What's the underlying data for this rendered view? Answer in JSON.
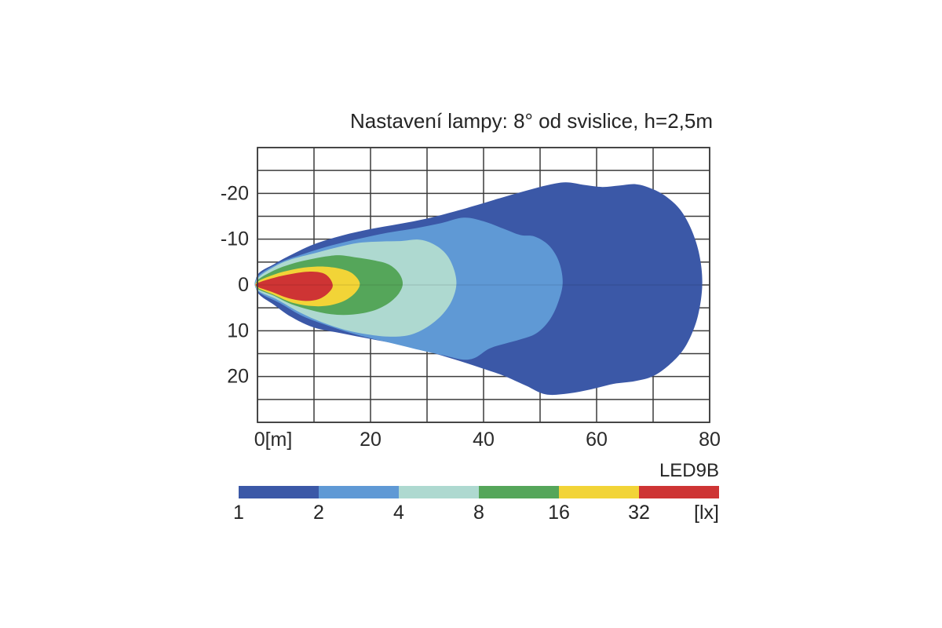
{
  "chart_data": {
    "type": "contour",
    "title": "Nastavení lampy: 8° od svislice, h=2,5m",
    "series": "LED9B",
    "unit": "[lx]",
    "x": {
      "range": [
        0,
        80
      ],
      "grid_step": 10,
      "ticks": [
        {
          "value": 0,
          "label": "0[m]",
          "offset": 20
        },
        {
          "value": 20,
          "label": "20",
          "offset": 0
        },
        {
          "value": 40,
          "label": "40",
          "offset": 0
        },
        {
          "value": 60,
          "label": "60",
          "offset": 0
        },
        {
          "value": 80,
          "label": "80",
          "offset": 0
        }
      ]
    },
    "y": {
      "range": [
        -30,
        30
      ],
      "grid_step": 5,
      "ticks": [
        {
          "value": -20,
          "label": "-20"
        },
        {
          "value": -10,
          "label": "-10"
        },
        {
          "value": 0,
          "label": "0"
        },
        {
          "value": 10,
          "label": "10"
        },
        {
          "value": 20,
          "label": "20"
        }
      ]
    },
    "grid_color": "#3c3c3c",
    "levels": [
      {
        "lux": 1,
        "color": "#3b58a7",
        "points": [
          [
            0,
            -2.2
          ],
          [
            3,
            -4.6
          ],
          [
            6,
            -6.6
          ],
          [
            10,
            -8.9
          ],
          [
            15,
            -10.8
          ],
          [
            20,
            -12.2
          ],
          [
            25,
            -13.3
          ],
          [
            30,
            -14.5
          ],
          [
            35,
            -16.1
          ],
          [
            39,
            -17.5
          ],
          [
            43,
            -19.0
          ],
          [
            47,
            -20.4
          ],
          [
            51,
            -21.7
          ],
          [
            54.5,
            -22.4
          ],
          [
            58,
            -21.8
          ],
          [
            61,
            -21.4
          ],
          [
            64,
            -21.7
          ],
          [
            67,
            -22.0
          ],
          [
            69.8,
            -21.0
          ],
          [
            72.3,
            -19.3
          ],
          [
            74.8,
            -16.4
          ],
          [
            76.8,
            -12.0
          ],
          [
            78.2,
            -6.5
          ],
          [
            78.7,
            -0.3
          ],
          [
            78.1,
            5.8
          ],
          [
            76.9,
            10.5
          ],
          [
            75.2,
            14.4
          ],
          [
            72.8,
            17.5
          ],
          [
            70,
            19.9
          ],
          [
            66.8,
            21.0
          ],
          [
            63,
            21.6
          ],
          [
            59,
            22.8
          ],
          [
            55,
            23.7
          ],
          [
            51,
            23.9
          ],
          [
            47.5,
            22.0
          ],
          [
            43.5,
            19.8
          ],
          [
            39.5,
            18.1
          ],
          [
            35,
            16.3
          ],
          [
            30,
            14.5
          ],
          [
            25,
            13.0
          ],
          [
            20,
            11.8
          ],
          [
            15,
            10.6
          ],
          [
            10,
            9.3
          ],
          [
            6,
            7.0
          ],
          [
            3,
            4.4
          ],
          [
            0,
            1.6
          ]
        ]
      },
      {
        "lux": 2,
        "color": "#5f99d5",
        "points": [
          [
            0,
            -1.8
          ],
          [
            4,
            -4.9
          ],
          [
            8,
            -6.7
          ],
          [
            13,
            -8.6
          ],
          [
            18,
            -10.1
          ],
          [
            23,
            -11.4
          ],
          [
            28,
            -12.4
          ],
          [
            32.5,
            -13.5
          ],
          [
            36.5,
            -14.7
          ],
          [
            40,
            -13.9
          ],
          [
            43.5,
            -12.3
          ],
          [
            46.5,
            -10.9
          ],
          [
            49,
            -10.6
          ],
          [
            51.5,
            -8.7
          ],
          [
            53.3,
            -5.2
          ],
          [
            54,
            -0.6
          ],
          [
            53.2,
            3.8
          ],
          [
            51.6,
            7.8
          ],
          [
            49.3,
            10.6
          ],
          [
            46.5,
            11.9
          ],
          [
            43.8,
            12.8
          ],
          [
            41,
            13.9
          ],
          [
            38.5,
            15.9
          ],
          [
            36.3,
            16.3
          ],
          [
            33,
            15.4
          ],
          [
            28,
            14.0
          ],
          [
            23,
            12.5
          ],
          [
            18,
            11.0
          ],
          [
            13,
            9.1
          ],
          [
            8,
            6.8
          ],
          [
            4,
            4.0
          ],
          [
            0,
            1.3
          ]
        ]
      },
      {
        "lux": 4,
        "color": "#aed9d0",
        "points": [
          [
            0,
            -1.4
          ],
          [
            3,
            -4.0
          ],
          [
            6,
            -5.6
          ],
          [
            10,
            -6.9
          ],
          [
            14,
            -8.2
          ],
          [
            18,
            -9.2
          ],
          [
            22,
            -9.5
          ],
          [
            25.5,
            -9.6
          ],
          [
            28.5,
            -9.9
          ],
          [
            31,
            -9.0
          ],
          [
            33.2,
            -7.0
          ],
          [
            34.6,
            -4.0
          ],
          [
            35.2,
            -0.3
          ],
          [
            34.4,
            3.4
          ],
          [
            32.6,
            6.6
          ],
          [
            30,
            9.2
          ],
          [
            27,
            10.9
          ],
          [
            23.5,
            11.3
          ],
          [
            19.5,
            10.8
          ],
          [
            15.5,
            9.8
          ],
          [
            11.5,
            8.2
          ],
          [
            7.5,
            6.0
          ],
          [
            3.5,
            3.2
          ],
          [
            0,
            1.1
          ]
        ]
      },
      {
        "lux": 8,
        "color": "#55a65a",
        "points": [
          [
            0,
            -1.0
          ],
          [
            3,
            -3.2
          ],
          [
            6,
            -4.6
          ],
          [
            9,
            -5.5
          ],
          [
            12,
            -6.2
          ],
          [
            14.5,
            -6.5
          ],
          [
            17.5,
            -6.0
          ],
          [
            20.5,
            -5.4
          ],
          [
            23.2,
            -4.5
          ],
          [
            25.0,
            -2.6
          ],
          [
            25.7,
            -0.2
          ],
          [
            24.8,
            2.2
          ],
          [
            22.8,
            4.3
          ],
          [
            20,
            5.8
          ],
          [
            16.5,
            6.5
          ],
          [
            13,
            6.4
          ],
          [
            9.5,
            5.5
          ],
          [
            6,
            4.2
          ],
          [
            2.8,
            2.3
          ],
          [
            0,
            0.8
          ]
        ]
      },
      {
        "lux": 16,
        "color": "#f2d437",
        "points": [
          [
            0,
            -0.7
          ],
          [
            3,
            -2.3
          ],
          [
            6,
            -3.3
          ],
          [
            9,
            -3.9
          ],
          [
            12,
            -4.0
          ],
          [
            14.8,
            -3.5
          ],
          [
            16.8,
            -2.5
          ],
          [
            18.1,
            -0.4
          ],
          [
            17.3,
            1.7
          ],
          [
            15.3,
            3.5
          ],
          [
            12.5,
            4.5
          ],
          [
            9.5,
            4.6
          ],
          [
            6,
            3.8
          ],
          [
            2.8,
            2.1
          ],
          [
            0,
            0.6
          ]
        ]
      },
      {
        "lux": 32,
        "color": "#ce3434",
        "points": [
          [
            0,
            -0.4
          ],
          [
            3,
            -1.6
          ],
          [
            6,
            -2.4
          ],
          [
            9,
            -2.9
          ],
          [
            11.5,
            -2.6
          ],
          [
            12.8,
            -1.4
          ],
          [
            13.3,
            0.3
          ],
          [
            12.4,
            1.9
          ],
          [
            10.8,
            3.1
          ],
          [
            8.5,
            3.5
          ],
          [
            5.5,
            2.9
          ],
          [
            2.5,
            1.5
          ],
          [
            0,
            0.4
          ]
        ]
      }
    ],
    "legend": {
      "boundary_labels": [
        "1",
        "2",
        "4",
        "8",
        "16",
        "32",
        "[lx]"
      ]
    }
  }
}
